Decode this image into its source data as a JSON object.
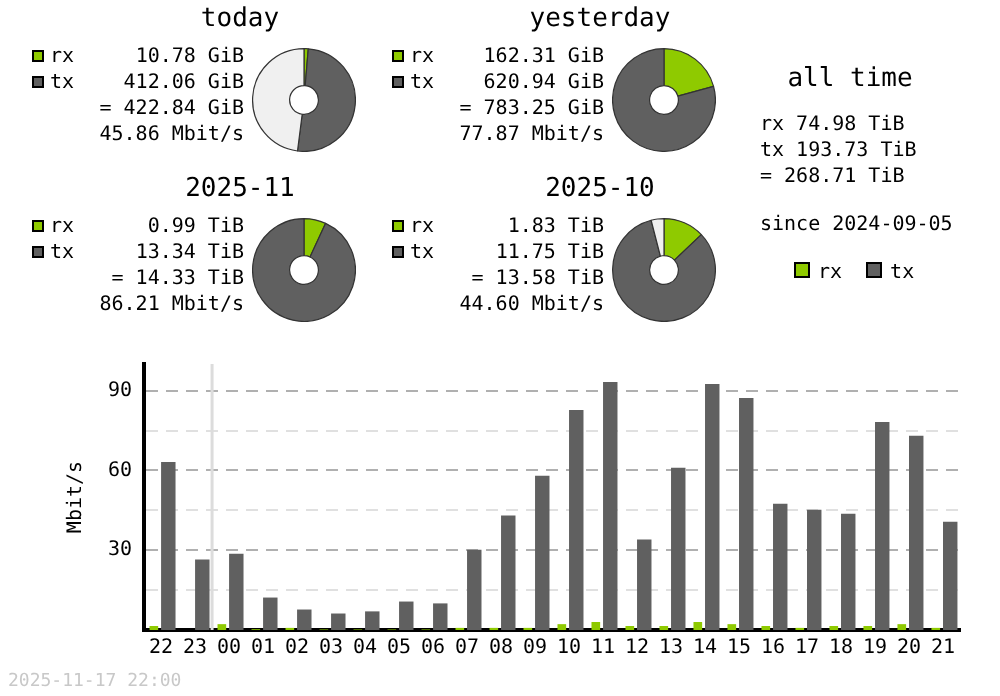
{
  "chart_data": [
    {
      "type": "donut",
      "title": "today",
      "categories": [
        "rx",
        "tx",
        null
      ],
      "values": [
        10.78,
        412.06,
        390
      ],
      "colors": [
        "#8fca00",
        "#606060",
        "#f0f0f0"
      ],
      "value_labels": [
        "10.78 GiB",
        "412.06 GiB",
        null
      ],
      "legend": "left",
      "annotations": [
        "= 422.84 GiB",
        "45.86 Mbit/s"
      ]
    },
    {
      "type": "donut",
      "title": "yesterday",
      "categories": [
        "rx",
        "tx"
      ],
      "values": [
        162.31,
        620.94
      ],
      "colors": [
        "#8fca00",
        "#606060"
      ],
      "value_labels": [
        "162.31 GiB",
        "620.94 GiB"
      ],
      "legend": "left",
      "annotations": [
        "= 783.25 GiB",
        "77.87 Mbit/s"
      ]
    },
    {
      "type": "donut",
      "title": "2025-11",
      "categories": [
        "rx",
        "tx"
      ],
      "values": [
        0.99,
        13.34
      ],
      "colors": [
        "#8fca00",
        "#606060"
      ],
      "value_labels": [
        "0.99 TiB",
        "13.34 TiB"
      ],
      "legend": "left",
      "annotations": [
        "= 14.33 TiB",
        "86.21 Mbit/s"
      ]
    },
    {
      "type": "donut",
      "title": "2025-10",
      "categories": [
        "rx",
        "tx",
        null
      ],
      "values": [
        1.83,
        11.75,
        0.57
      ],
      "colors": [
        "#8fca00",
        "#606060",
        "#f0f0f0"
      ],
      "value_labels": [
        "1.83 TiB",
        "11.75 TiB",
        null
      ],
      "legend": "left",
      "annotations": [
        "= 13.58 TiB",
        "44.60 Mbit/s"
      ]
    },
    {
      "type": "other",
      "title": "all time",
      "annotations": [
        "rx 74.98 TiB",
        "tx 193.73 TiB",
        "= 268.71 TiB",
        "since 2024-09-05"
      ]
    },
    {
      "type": "bar",
      "ylabel": "Mbit/s",
      "categories": [
        "22",
        "23",
        "00",
        "01",
        "02",
        "03",
        "04",
        "05",
        "06",
        "07",
        "08",
        "09",
        "10",
        "11",
        "12",
        "13",
        "14",
        "15",
        "16",
        "17",
        "18",
        "19",
        "20",
        "21"
      ],
      "series": [
        {
          "name": "rx",
          "color": "#8fca00",
          "values": [
            1.5,
            0,
            2.2,
            0.3,
            0.8,
            0.2,
            0.2,
            0.2,
            0.2,
            0.8,
            0.8,
            0.8,
            2.2,
            3,
            1.5,
            1.5,
            3,
            2.2,
            1.5,
            0.8,
            1.5,
            1.5,
            2.2,
            0.8
          ]
        },
        {
          "name": "tx",
          "color": "#606060",
          "values": [
            63.2,
            26.5,
            28.7,
            12.2,
            7.7,
            6.2,
            7,
            10.7,
            10,
            30.2,
            43,
            58,
            82.7,
            93.2,
            34,
            61,
            92.5,
            87.2,
            47.5,
            45.2,
            43.7,
            78.2,
            73,
            40.7
          ]
        }
      ],
      "ylim": [
        0,
        100
      ],
      "yticks": [
        {
          "value": 15,
          "label": null
        },
        30,
        {
          "value": 45,
          "label": null
        },
        60,
        {
          "value": 75,
          "label": null
        },
        90
      ],
      "grid": "y",
      "legend": "top right",
      "ref_lines": [
        {
          "axis": "x",
          "value": "00",
          "color": "#dcdcdc"
        }
      ],
      "annotations": [
        "2025-11-17 22:00"
      ]
    }
  ]
}
